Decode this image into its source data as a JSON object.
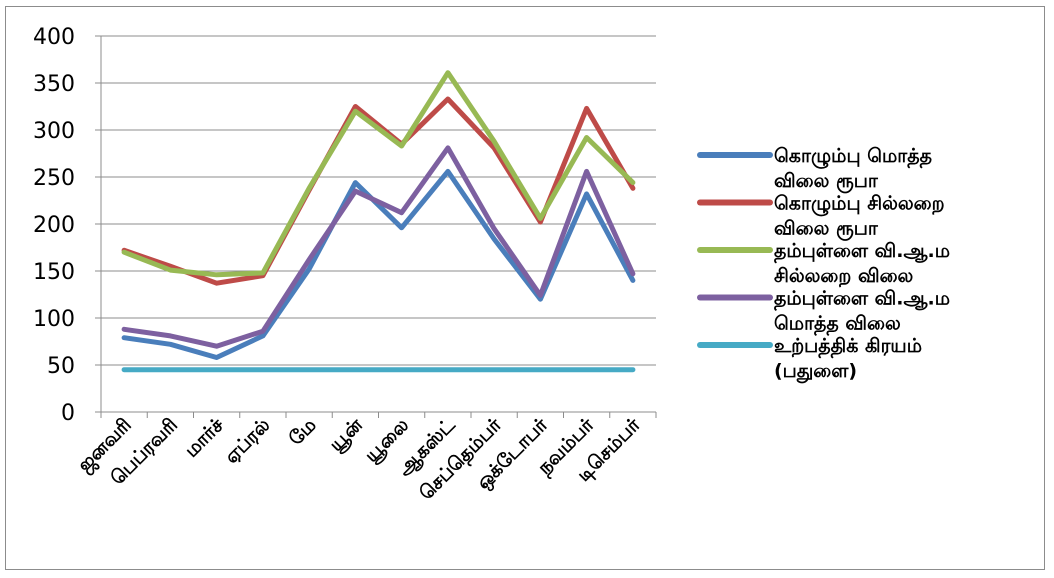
{
  "chart_data": {
    "type": "line",
    "title": "",
    "xlabel": "",
    "ylabel": "",
    "ylim": [
      0,
      400
    ],
    "yticks": [
      "0",
      "50",
      "100",
      "150",
      "200",
      "250",
      "300",
      "350",
      "400"
    ],
    "grid": true,
    "legend_position": "right",
    "categories": [
      "ஜனவரி",
      "பெப்ரவரி",
      "மார்ச்",
      "ஏப்ரல்",
      "மே",
      "யூன்",
      "யூலை",
      "ஆகஸ்ட்",
      "செப்தெம்பர்",
      "ஒக்டோபர்",
      "நவம்பர்",
      "டிசெம்பர்"
    ],
    "series": [
      {
        "name": "கொழும்பு மொத்த விலை ரூபா",
        "color": "#4a7ebb",
        "values": [
          79,
          72,
          58,
          81,
          152,
          244,
          196,
          256,
          184,
          120,
          232,
          140
        ]
      },
      {
        "name": "கொழும்பு சில்லறை விலை ரூபா",
        "color": "#be4b48",
        "values": [
          172,
          155,
          137,
          145,
          236,
          325,
          285,
          333,
          281,
          202,
          323,
          238
        ]
      },
      {
        "name": "தம்புள்ளை வி.ஆ.ம சில்லறை விலை",
        "color": "#98b954",
        "values": [
          170,
          151,
          146,
          148,
          238,
          320,
          283,
          361,
          288,
          206,
          292,
          244
        ]
      },
      {
        "name": "தம்புள்ளை வி.ஆ.ம மொத்த விலை",
        "color": "#7d60a0",
        "values": [
          88,
          81,
          70,
          86,
          162,
          235,
          212,
          281,
          195,
          124,
          256,
          147
        ]
      },
      {
        "name": "உற்பத்திக் கிரயம் (பதுளை)",
        "color": "#46aac5",
        "values": [
          45,
          45,
          45,
          45,
          45,
          45,
          45,
          45,
          45,
          45,
          45,
          45
        ]
      }
    ],
    "legend_lines": [
      [
        "கொழும்பு மொத்த",
        "விலை ரூபா"
      ],
      [
        "கொழும்பு சில்லறை",
        "விலை ரூபா"
      ],
      [
        "தம்புள்ளை வி.ஆ.ம",
        "சில்லறை விலை"
      ],
      [
        "தம்புள்ளை வி.ஆ.ம",
        "மொத்த விலை"
      ],
      [
        "உற்பத்திக் கிரயம்",
        "(பதுளை)"
      ]
    ]
  }
}
